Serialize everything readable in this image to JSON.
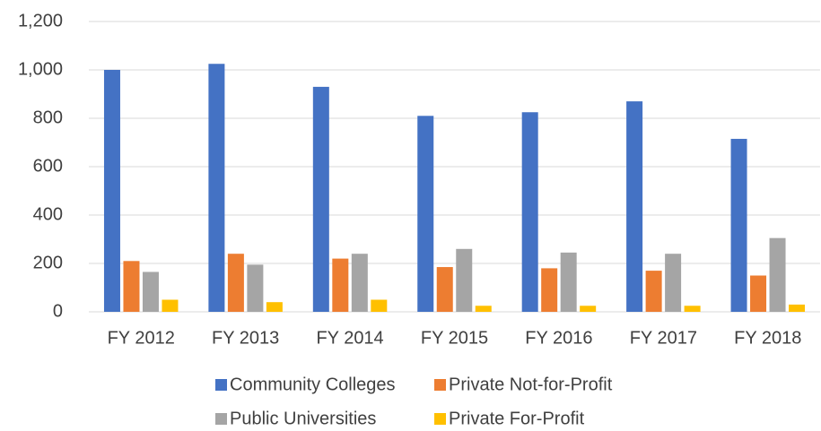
{
  "chart_data": {
    "type": "bar",
    "categories": [
      "FY 2012",
      "FY 2013",
      "FY 2014",
      "FY 2015",
      "FY 2016",
      "FY 2017",
      "FY 2018"
    ],
    "series": [
      {
        "name": "Community Colleges",
        "color": "#4472c4",
        "values": [
          1000,
          1025,
          930,
          810,
          825,
          870,
          715
        ]
      },
      {
        "name": "Private Not-for-Profit",
        "color": "#ed7d31",
        "values": [
          210,
          240,
          220,
          185,
          180,
          170,
          150
        ]
      },
      {
        "name": "Public Universities",
        "color": "#a5a5a5",
        "values": [
          165,
          195,
          240,
          260,
          245,
          240,
          305
        ]
      },
      {
        "name": "Private For-Profit",
        "color": "#ffc000",
        "values": [
          50,
          40,
          50,
          25,
          25,
          25,
          30
        ]
      }
    ],
    "ylim": [
      0,
      1200
    ],
    "yticks": [
      0,
      200,
      400,
      600,
      800,
      {
        "value": 1000,
        "label": "1,000"
      },
      {
        "value": 1200,
        "label": "1,200"
      }
    ],
    "grid": true,
    "legend": "bottom"
  }
}
